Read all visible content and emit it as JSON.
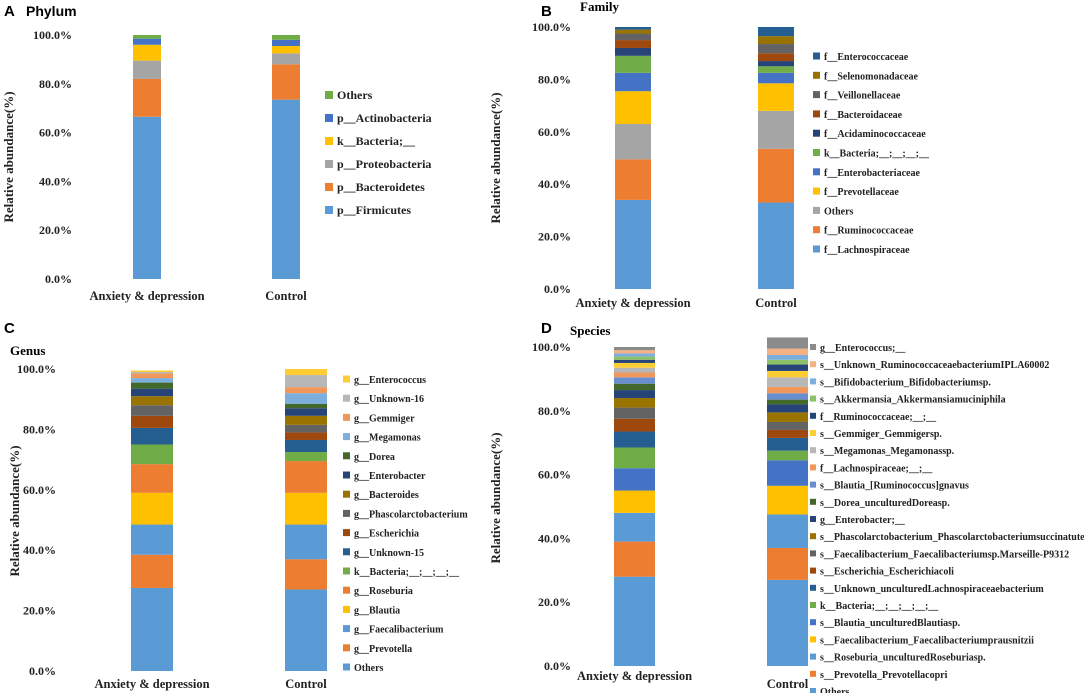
{
  "chart_data": [
    {
      "panel": "A",
      "type": "bar",
      "stacked": true,
      "title": "Phylum",
      "ylabel": "Relative abundance(%)",
      "ylim": [
        0,
        100
      ],
      "yticks": [
        "0.0%",
        "20.0%",
        "40.0%",
        "60.0%",
        "80.0%",
        "100.0%"
      ],
      "categories": [
        "Anxiety & depression",
        "Control"
      ],
      "series": [
        {
          "name": "p__Firmicutes",
          "color": "#5B9BD5",
          "values": [
            66.5,
            73.5
          ]
        },
        {
          "name": "p__Bacteroidetes",
          "color": "#ED7D31",
          "values": [
            15.5,
            14.5
          ]
        },
        {
          "name": "p__Proteobacteria",
          "color": "#A5A5A5",
          "values": [
            7.5,
            4.5
          ]
        },
        {
          "name": "k__Bacteria;__",
          "color": "#FFC000",
          "values": [
            6.5,
            3.0
          ]
        },
        {
          "name": "p__Actinobacteria",
          "color": "#4472C4",
          "values": [
            2.5,
            2.5
          ]
        },
        {
          "name": "Others",
          "color": "#70AD47",
          "values": [
            1.5,
            2.0
          ]
        }
      ]
    },
    {
      "panel": "B",
      "type": "bar",
      "stacked": true,
      "title": "Family",
      "ylabel": "Relative abundance(%)",
      "ylim": [
        0,
        100
      ],
      "yticks": [
        "0.0%",
        "20.0%",
        "40.0%",
        "60.0%",
        "80.0%",
        "100.0%"
      ],
      "categories": [
        "Anxiety & depression",
        "Control"
      ],
      "series": [
        {
          "name": "f__Lachnospiraceae",
          "color": "#5B9BD5",
          "values": [
            34.0,
            33.0
          ]
        },
        {
          "name": "f__Ruminococcaceae",
          "color": "#ED7D31",
          "values": [
            15.5,
            20.5
          ]
        },
        {
          "name": "Others",
          "color": "#A5A5A5",
          "values": [
            13.5,
            14.5
          ]
        },
        {
          "name": "f__Prevotellaceae",
          "color": "#FFC000",
          "values": [
            12.5,
            10.5
          ]
        },
        {
          "name": "f__Enterobacteriaceae",
          "color": "#4472C4",
          "values": [
            7.0,
            4.0
          ]
        },
        {
          "name": "k__Bacteria;__;__;__;__",
          "color": "#70AD47",
          "values": [
            6.5,
            2.5
          ]
        },
        {
          "name": "f__Acidaminococcaceae",
          "color": "#264478",
          "values": [
            3.0,
            2.0
          ]
        },
        {
          "name": "f__Bacteroidaceae",
          "color": "#9E480E",
          "values": [
            3.0,
            3.0
          ]
        },
        {
          "name": "f__Veillonellaceae",
          "color": "#636363",
          "values": [
            2.5,
            3.5
          ]
        },
        {
          "name": "f__Selenomonadaceae",
          "color": "#997300",
          "values": [
            1.5,
            3.0
          ]
        },
        {
          "name": "f__Enterococcaceae",
          "color": "#255E91",
          "values": [
            1.0,
            3.5
          ]
        }
      ]
    },
    {
      "panel": "C",
      "type": "bar",
      "stacked": true,
      "title": "Genus",
      "ylabel": "Relative abundance(%)",
      "ylim": [
        0,
        100
      ],
      "yticks": [
        "0.0%",
        "20.0%",
        "40.0%",
        "60.0%",
        "80.0%",
        "100.0%"
      ],
      "categories": [
        "Anxiety & depression",
        "Control"
      ],
      "series": [
        {
          "name": "Others",
          "color": "#5B9BD5",
          "values": [
            27.5,
            27.0
          ]
        },
        {
          "name": "g__Prevotella",
          "color": "#ED7D31",
          "values": [
            11.0,
            10.0
          ]
        },
        {
          "name": "g__Faecalibacterium",
          "color": "#5B9BD5",
          "values": [
            10.0,
            11.5
          ]
        },
        {
          "name": "g__Blautia",
          "color": "#FFC000",
          "values": [
            10.5,
            10.5
          ]
        },
        {
          "name": "g__Roseburia",
          "color": "#ED7D31",
          "values": [
            9.5,
            10.5
          ]
        },
        {
          "name": "k__Bacteria;__;__;__;__",
          "color": "#70AD47",
          "values": [
            6.5,
            3.0
          ]
        },
        {
          "name": "g__Unknown-15",
          "color": "#255E91",
          "values": [
            5.5,
            4.0
          ]
        },
        {
          "name": "g__Escherichia",
          "color": "#9E480E",
          "values": [
            4.0,
            2.5
          ]
        },
        {
          "name": "g__Phascolarctobacterium",
          "color": "#636363",
          "values": [
            3.5,
            2.5
          ]
        },
        {
          "name": "g__Bacteroides",
          "color": "#997300",
          "values": [
            3.0,
            3.0
          ]
        },
        {
          "name": "g__Enterobacter",
          "color": "#264478",
          "values": [
            2.5,
            2.5
          ]
        },
        {
          "name": "g__Dorea",
          "color": "#43682B",
          "values": [
            2.0,
            1.5
          ]
        },
        {
          "name": "g__Megamonas",
          "color": "#7CAFDD",
          "values": [
            1.5,
            3.5
          ]
        },
        {
          "name": "g__Gemmiger",
          "color": "#F1975A",
          "values": [
            1.5,
            2.0
          ]
        },
        {
          "name": "g__Unknown-16",
          "color": "#B7B7B7",
          "values": [
            0.5,
            4.0
          ]
        },
        {
          "name": "g__Enterococcus",
          "color": "#FFCD33",
          "values": [
            0.5,
            2.0
          ]
        }
      ]
    },
    {
      "panel": "D",
      "type": "bar",
      "stacked": true,
      "title": "Species",
      "ylabel": "Relative abundance(%)",
      "ylim": [
        0,
        100
      ],
      "yticks": [
        "0.0%",
        "20.0%",
        "40.0%",
        "60.0%",
        "80.0%",
        "100.0%"
      ],
      "categories": [
        "Anxiety & depression",
        "Control"
      ],
      "series": [
        {
          "name": "Others",
          "color": "#5B9BD5",
          "values": [
            28.0,
            27.0
          ]
        },
        {
          "name": "s__Prevotella_Prevotellacopri",
          "color": "#ED7D31",
          "values": [
            11.0,
            10.0
          ]
        },
        {
          "name": "s__Roseburia_unculturedRoseburiasp.",
          "color": "#5B9BD5",
          "values": [
            9.0,
            10.5
          ]
        },
        {
          "name": "s__Faecalibacterium_Faecalibacteriumprausnitzii",
          "color": "#FFC000",
          "values": [
            7.0,
            9.0
          ]
        },
        {
          "name": "s__Blautia_unculturedBlautiasp.",
          "color": "#4472C4",
          "values": [
            7.0,
            8.0
          ]
        },
        {
          "name": "k__Bacteria;__;__;__;__;__",
          "color": "#70AD47",
          "values": [
            6.5,
            3.0
          ]
        },
        {
          "name": "s__Unknown_unculturedLachnospiraceaebacterium",
          "color": "#255E91",
          "values": [
            5.0,
            4.0
          ]
        },
        {
          "name": "s__Escherichia_Escherichiacoli",
          "color": "#9E480E",
          "values": [
            4.0,
            2.5
          ]
        },
        {
          "name": "s__Faecalibacterium_Faecalibacteriumsp.Marseille-P9312",
          "color": "#636363",
          "values": [
            3.5,
            2.5
          ]
        },
        {
          "name": "s__Phascolarctobacterium_Phascolarctobacteriumsuccinatutens",
          "color": "#997300",
          "values": [
            3.0,
            3.0
          ]
        },
        {
          "name": "g__Enterobacter;__",
          "color": "#264478",
          "values": [
            2.5,
            2.5
          ]
        },
        {
          "name": "s__Dorea_unculturedDoreasp.",
          "color": "#43682B",
          "values": [
            2.0,
            1.5
          ]
        },
        {
          "name": "s__Blautia_[Ruminococcus]gnavus",
          "color": "#698ED0",
          "values": [
            2.0,
            2.0
          ]
        },
        {
          "name": "f__Lachnospiraceae;__;__",
          "color": "#F1975A",
          "values": [
            1.5,
            2.0
          ]
        },
        {
          "name": "s__Megamonas_Megamonassp.",
          "color": "#B7B7B7",
          "values": [
            1.5,
            3.0
          ]
        },
        {
          "name": "s__Gemmiger_Gemmigersp.",
          "color": "#FFCD33",
          "values": [
            1.5,
            2.0
          ]
        },
        {
          "name": "f__Ruminococcaceae;__;__",
          "color": "#264478",
          "values": [
            1.0,
            2.0
          ]
        },
        {
          "name": "s__Akkermansia_Akkermansiamuciniphila",
          "color": "#8CC168",
          "values": [
            1.0,
            1.5
          ]
        },
        {
          "name": "s__Bifidobacterium_Bifidobacteriumsp.",
          "color": "#7CAFDD",
          "values": [
            1.0,
            1.5
          ]
        },
        {
          "name": "s__Unknown_RuminococcaceaebacteriumIPLA60002",
          "color": "#F4B183",
          "values": [
            1.0,
            2.0
          ]
        },
        {
          "name": "g__Enterococcus;__",
          "color": "#8B8B8B",
          "values": [
            1.0,
            3.5
          ]
        }
      ]
    }
  ]
}
